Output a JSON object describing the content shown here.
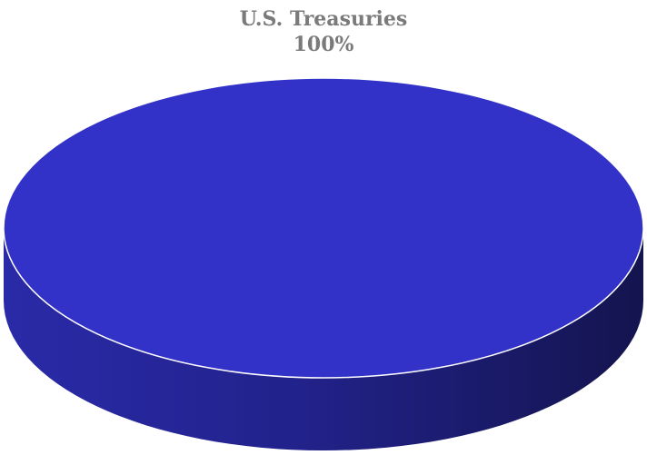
{
  "chart_data": {
    "type": "pie",
    "style": "3d",
    "slices": [
      {
        "label": "U.S. Treasuries",
        "value": 100,
        "value_label": "100%",
        "color": "#3232c8"
      }
    ],
    "title": "",
    "legend": "none"
  }
}
